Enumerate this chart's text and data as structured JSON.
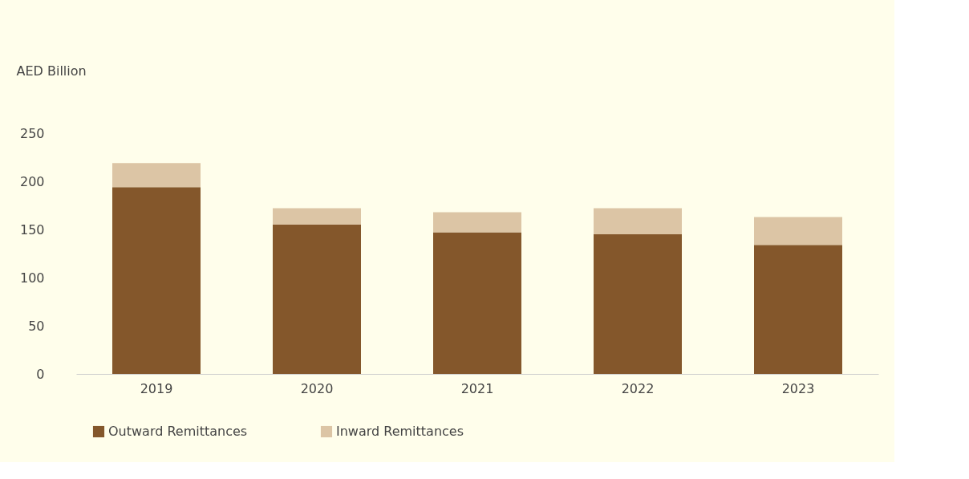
{
  "chart_data": {
    "type": "bar",
    "stacked": true,
    "ylabel": "AED Billion",
    "categories": [
      "2019",
      "2020",
      "2021",
      "2022",
      "2023"
    ],
    "series": [
      {
        "name": "Outward Remittances",
        "color": "#84572b",
        "values": [
          194,
          155,
          147,
          145,
          134
        ]
      },
      {
        "name": "Inward Remittances",
        "color": "#dcc5a5",
        "values": [
          25,
          17,
          21,
          27,
          29
        ]
      }
    ],
    "ylim": [
      0,
      250
    ],
    "yticks": [
      0,
      50,
      100,
      150,
      200,
      250
    ],
    "grid": false,
    "legend": "bottom"
  }
}
